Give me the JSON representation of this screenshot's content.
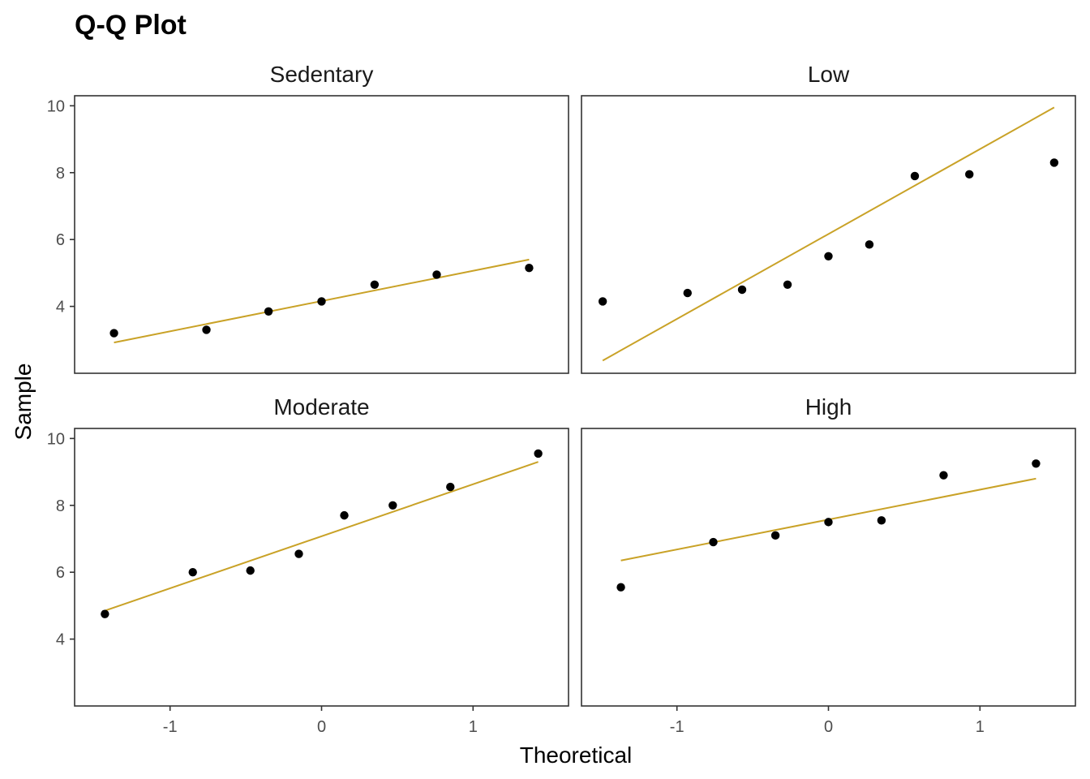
{
  "colors": {
    "line": "#C9A227",
    "point": "#000000",
    "frame": "#333333"
  },
  "chart_data": {
    "type": "scatter",
    "title": "Q-Q Plot",
    "xlabel": "Theoretical",
    "ylabel": "Sample",
    "xlim": [
      -1.63,
      1.63
    ],
    "ylim": [
      2.0,
      10.3
    ],
    "xticks": [
      -1,
      0,
      1
    ],
    "xtick_labels": [
      "-1",
      "0",
      "1"
    ],
    "yticks": [
      4,
      6,
      8,
      10
    ],
    "ytick_labels": [
      "4",
      "6",
      "8",
      "10"
    ],
    "grid": false,
    "panels": [
      {
        "name": "Sedentary",
        "points": [
          {
            "x": -1.37,
            "y": 3.2
          },
          {
            "x": -0.76,
            "y": 3.3
          },
          {
            "x": -0.35,
            "y": 3.85
          },
          {
            "x": 0.0,
            "y": 4.15
          },
          {
            "x": 0.35,
            "y": 4.65
          },
          {
            "x": 0.76,
            "y": 4.95
          },
          {
            "x": 1.37,
            "y": 5.15
          }
        ],
        "line": [
          {
            "x": -1.37,
            "y": 2.92
          },
          {
            "x": 1.37,
            "y": 5.4
          }
        ]
      },
      {
        "name": "Low",
        "points": [
          {
            "x": -1.49,
            "y": 4.15
          },
          {
            "x": -0.93,
            "y": 4.4
          },
          {
            "x": -0.57,
            "y": 4.5
          },
          {
            "x": -0.27,
            "y": 4.65
          },
          {
            "x": 0.0,
            "y": 5.5
          },
          {
            "x": 0.27,
            "y": 5.85
          },
          {
            "x": 0.57,
            "y": 7.9
          },
          {
            "x": 0.93,
            "y": 7.95
          },
          {
            "x": 1.49,
            "y": 8.3
          }
        ],
        "line": [
          {
            "x": -1.49,
            "y": 2.38
          },
          {
            "x": 1.49,
            "y": 9.95
          }
        ]
      },
      {
        "name": "Moderate",
        "points": [
          {
            "x": -1.43,
            "y": 4.75
          },
          {
            "x": -0.85,
            "y": 6.0
          },
          {
            "x": -0.47,
            "y": 6.05
          },
          {
            "x": -0.15,
            "y": 6.55
          },
          {
            "x": 0.15,
            "y": 7.7
          },
          {
            "x": 0.47,
            "y": 8.0
          },
          {
            "x": 0.85,
            "y": 8.55
          },
          {
            "x": 1.43,
            "y": 9.55
          }
        ],
        "line": [
          {
            "x": -1.43,
            "y": 4.85
          },
          {
            "x": 1.43,
            "y": 9.3
          }
        ]
      },
      {
        "name": "High",
        "points": [
          {
            "x": -1.37,
            "y": 5.55
          },
          {
            "x": -0.76,
            "y": 6.9
          },
          {
            "x": -0.35,
            "y": 7.1
          },
          {
            "x": 0.0,
            "y": 7.5
          },
          {
            "x": 0.35,
            "y": 7.55
          },
          {
            "x": 0.76,
            "y": 8.9
          },
          {
            "x": 1.37,
            "y": 9.25
          }
        ],
        "line": [
          {
            "x": -1.37,
            "y": 6.35
          },
          {
            "x": 1.37,
            "y": 8.8
          }
        ]
      }
    ]
  }
}
